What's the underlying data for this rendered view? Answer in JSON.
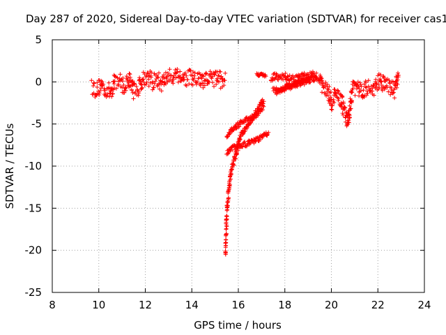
{
  "chart_data": {
    "type": "scatter",
    "title": "Day 287 of 2020, Sidereal Day-to-day VTEC variation (SDTVAR) for receiver cas1",
    "xlabel": "GPS time / hours",
    "ylabel": "SDTVAR / TECUs",
    "xlim": [
      8,
      24
    ],
    "ylim": [
      -25,
      5
    ],
    "xticks": [
      8,
      10,
      12,
      14,
      16,
      18,
      20,
      22,
      24
    ],
    "yticks": [
      -25,
      -20,
      -15,
      -10,
      -5,
      0,
      5
    ],
    "grid": true,
    "marker": "+",
    "series": [
      {
        "name": "SDTVAR",
        "color": "#ff0000",
        "segments": [
          {
            "x": [
              9.7,
              9.9,
              10.1,
              10.3,
              10.5,
              10.7,
              10.9,
              11.1,
              11.3,
              11.5,
              11.7,
              11.9,
              12.1,
              12.3,
              12.5,
              12.7,
              12.9,
              13.1,
              13.3,
              13.5,
              13.7,
              13.9,
              14.1,
              14.3,
              14.5,
              14.7,
              14.9,
              15.1,
              15.3,
              15.45
            ],
            "y": [
              -0.5,
              -1.0,
              -0.3,
              -0.9,
              -1.2,
              0.2,
              0.1,
              -0.6,
              0.4,
              -1.0,
              -0.8,
              0.5,
              0.6,
              0.0,
              0.3,
              -0.2,
              0.5,
              0.6,
              1.0,
              0.7,
              0.4,
              0.5,
              0.2,
              0.4,
              -0.2,
              0.5,
              0.2,
              0.6,
              0.1,
              0.3
            ],
            "spread": 1.0
          },
          {
            "x": [
              15.45,
              15.48,
              15.5,
              15.55,
              15.6,
              15.65,
              15.7,
              15.8,
              15.9,
              16.0
            ],
            "y": [
              -20.5,
              -17.5,
              -15.5,
              -14.0,
              -12.5,
              -11.5,
              -10.5,
              -9.5,
              -8.5,
              -7.5
            ],
            "spread": 0.5
          },
          {
            "x": [
              15.5,
              15.7,
              15.9,
              16.1,
              16.3,
              16.5,
              16.7,
              16.9,
              17.1
            ],
            "y": [
              -6.5,
              -5.8,
              -5.3,
              -4.9,
              -4.6,
              -4.3,
              -3.8,
              -2.8,
              -2.2
            ],
            "spread": 0.3
          },
          {
            "x": [
              15.5,
              15.8,
              16.1,
              16.4,
              16.7,
              17.0,
              17.3
            ],
            "y": [
              -8.5,
              -7.8,
              -7.5,
              -7.3,
              -7.0,
              -6.6,
              -6.0
            ],
            "spread": 0.3
          },
          {
            "x": [
              15.9,
              16.1,
              16.3,
              16.5,
              16.7,
              16.9,
              17.1
            ],
            "y": [
              -8.0,
              -6.5,
              -5.5,
              -4.8,
              -4.2,
              -3.5,
              -2.8
            ],
            "spread": 0.3
          },
          {
            "x": [
              16.8,
              16.9,
              17.0,
              17.1,
              17.2
            ],
            "y": [
              0.9,
              0.8,
              0.9,
              0.8,
              0.7
            ],
            "spread": 0.15
          },
          {
            "x": [
              17.4,
              17.6,
              17.8,
              18.0,
              18.2,
              18.4,
              18.6,
              18.8,
              19.0,
              19.2,
              19.4
            ],
            "y": [
              0.4,
              0.7,
              0.6,
              0.7,
              0.4,
              0.3,
              0.5,
              0.7,
              0.6,
              0.9,
              0.7
            ],
            "spread": 0.4
          },
          {
            "x": [
              17.5,
              17.8,
              18.1,
              18.4,
              18.7,
              19.0,
              19.3,
              19.6
            ],
            "y": [
              -0.8,
              -1.0,
              -0.5,
              -0.2,
              0.1,
              0.2,
              0.4,
              0.3
            ],
            "spread": 0.3
          },
          {
            "x": [
              17.6,
              17.9,
              18.2,
              18.5,
              18.8,
              19.1
            ],
            "y": [
              -1.3,
              -1.0,
              -0.6,
              -0.3,
              -0.1,
              0.2
            ],
            "spread": 0.3
          },
          {
            "x": [
              19.5,
              19.7,
              19.9,
              20.0,
              20.2,
              20.4,
              20.6,
              20.7,
              20.8,
              20.9,
              21.1,
              21.3,
              21.5,
              21.7,
              21.9,
              22.1,
              22.3,
              22.5,
              22.7,
              22.9
            ],
            "y": [
              0.0,
              -0.5,
              -1.5,
              -2.5,
              -1.5,
              -2.0,
              -4.0,
              -4.8,
              -3.0,
              -1.0,
              -0.5,
              -1.3,
              -0.6,
              -0.8,
              -0.5,
              0.3,
              -0.5,
              -0.4,
              -1.0,
              0.8
            ],
            "spread": 1.0
          }
        ]
      }
    ]
  }
}
